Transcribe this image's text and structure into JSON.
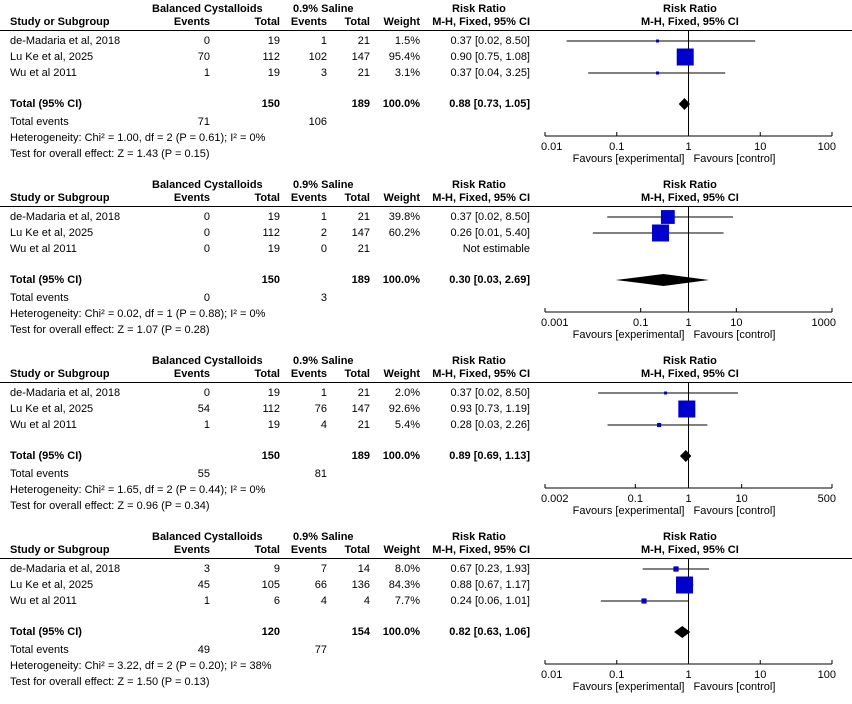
{
  "column_headers": {
    "group1": "Balanced Cystalloids",
    "group2": "0.9% Saline",
    "risk_ratio": "Risk Ratio",
    "study": "Study or Subgroup",
    "events": "Events",
    "total": "Total",
    "weight": "Weight",
    "method": "M-H, Fixed, 95% CI"
  },
  "labels": {
    "total_row": "Total (95% CI)",
    "total_events": "Total events",
    "favours_left": "Favours [experimental]",
    "favours_right": "Favours [control]"
  },
  "colors": {
    "study_marker": "#0000CC",
    "summary_diamond": "#000000"
  },
  "chart_data": [
    {
      "type": "forest",
      "scale": "log",
      "ticks": [
        "0.01",
        "0.1",
        "1",
        "10",
        "100"
      ],
      "xlim": [
        0.01,
        100
      ],
      "studies": [
        {
          "name": "de-Madaria et al, 2018",
          "e1": "0",
          "n1": "19",
          "e2": "1",
          "n2": "21",
          "weight": "1.5%",
          "ci": "0.37 [0.02, 8.50]",
          "rr": 0.37,
          "lo": 0.02,
          "hi": 8.5,
          "w": 1.5
        },
        {
          "name": "Lu Ke et al, 2025",
          "e1": "70",
          "n1": "112",
          "e2": "102",
          "n2": "147",
          "weight": "95.4%",
          "ci": "0.90 [0.75, 1.08]",
          "rr": 0.9,
          "lo": 0.75,
          "hi": 1.08,
          "w": 95.4
        },
        {
          "name": "Wu et al 2011",
          "e1": "1",
          "n1": "19",
          "e2": "3",
          "n2": "21",
          "weight": "3.1%",
          "ci": "0.37 [0.04, 3.25]",
          "rr": 0.37,
          "lo": 0.04,
          "hi": 3.25,
          "w": 3.1
        }
      ],
      "total": {
        "n1": "150",
        "n2": "189",
        "weight": "100.0%",
        "ci": "0.88 [0.73, 1.05]",
        "rr": 0.88,
        "lo": 0.73,
        "hi": 1.05
      },
      "total_events": {
        "e1": "71",
        "e2": "106"
      },
      "heterogeneity": "Heterogeneity: Chi² = 1.00, df = 2 (P = 0.61); I² = 0%",
      "overall_effect": "Test for overall effect: Z = 1.43 (P = 0.15)"
    },
    {
      "type": "forest",
      "scale": "log",
      "ticks": [
        "0.001",
        "0.1",
        "1",
        "10",
        "1000"
      ],
      "xlim": [
        0.001,
        1000
      ],
      "studies": [
        {
          "name": "de-Madaria et al, 2018",
          "e1": "0",
          "n1": "19",
          "e2": "1",
          "n2": "21",
          "weight": "39.8%",
          "ci": "0.37 [0.02, 8.50]",
          "rr": 0.37,
          "lo": 0.02,
          "hi": 8.5,
          "w": 39.8
        },
        {
          "name": "Lu Ke et al, 2025",
          "e1": "0",
          "n1": "112",
          "e2": "2",
          "n2": "147",
          "weight": "60.2%",
          "ci": "0.26 [0.01, 5.40]",
          "rr": 0.26,
          "lo": 0.01,
          "hi": 5.4,
          "w": 60.2
        },
        {
          "name": "Wu et al 2011",
          "e1": "0",
          "n1": "19",
          "e2": "0",
          "n2": "21",
          "weight": "",
          "ci": "Not estimable",
          "rr": null,
          "lo": null,
          "hi": null,
          "w": 0
        }
      ],
      "total": {
        "n1": "150",
        "n2": "189",
        "weight": "100.0%",
        "ci": "0.30 [0.03, 2.69]",
        "rr": 0.3,
        "lo": 0.03,
        "hi": 2.69
      },
      "total_events": {
        "e1": "0",
        "e2": "3"
      },
      "heterogeneity": "Heterogeneity: Chi² = 0.02, df = 1 (P = 0.88); I² = 0%",
      "overall_effect": "Test for overall effect: Z = 1.07 (P = 0.28)"
    },
    {
      "type": "forest",
      "scale": "log",
      "ticks": [
        "0.002",
        "0.1",
        "1",
        "10",
        "500"
      ],
      "xlim": [
        0.002,
        500
      ],
      "studies": [
        {
          "name": "de-Madaria et al, 2018",
          "e1": "0",
          "n1": "19",
          "e2": "1",
          "n2": "21",
          "weight": "2.0%",
          "ci": "0.37 [0.02, 8.50]",
          "rr": 0.37,
          "lo": 0.02,
          "hi": 8.5,
          "w": 2.0
        },
        {
          "name": "Lu Ke et al, 2025",
          "e1": "54",
          "n1": "112",
          "e2": "76",
          "n2": "147",
          "weight": "92.6%",
          "ci": "0.93 [0.73, 1.19]",
          "rr": 0.93,
          "lo": 0.73,
          "hi": 1.19,
          "w": 92.6
        },
        {
          "name": "Wu et al 2011",
          "e1": "1",
          "n1": "19",
          "e2": "4",
          "n2": "21",
          "weight": "5.4%",
          "ci": "0.28 [0.03, 2.26]",
          "rr": 0.28,
          "lo": 0.03,
          "hi": 2.26,
          "w": 5.4
        }
      ],
      "total": {
        "n1": "150",
        "n2": "189",
        "weight": "100.0%",
        "ci": "0.89 [0.69, 1.13]",
        "rr": 0.89,
        "lo": 0.69,
        "hi": 1.13
      },
      "total_events": {
        "e1": "55",
        "e2": "81"
      },
      "heterogeneity": "Heterogeneity: Chi² = 1.65, df = 2 (P = 0.44); I² = 0%",
      "overall_effect": "Test for overall effect: Z = 0.96 (P = 0.34)"
    },
    {
      "type": "forest",
      "scale": "log",
      "ticks": [
        "0.01",
        "0.1",
        "1",
        "10",
        "100"
      ],
      "xlim": [
        0.01,
        100
      ],
      "studies": [
        {
          "name": "de-Madaria et al, 2018",
          "e1": "3",
          "n1": "9",
          "e2": "7",
          "n2": "14",
          "weight": "8.0%",
          "ci": "0.67 [0.23, 1.93]",
          "rr": 0.67,
          "lo": 0.23,
          "hi": 1.93,
          "w": 8.0
        },
        {
          "name": "Lu Ke et al, 2025",
          "e1": "45",
          "n1": "105",
          "e2": "66",
          "n2": "136",
          "weight": "84.3%",
          "ci": "0.88 [0.67, 1.17]",
          "rr": 0.88,
          "lo": 0.67,
          "hi": 1.17,
          "w": 84.3
        },
        {
          "name": "Wu et al 2011",
          "e1": "1",
          "n1": "6",
          "e2": "4",
          "n2": "4",
          "weight": "7.7%",
          "ci": "0.24 [0.06, 1.01]",
          "rr": 0.24,
          "lo": 0.06,
          "hi": 1.01,
          "w": 7.7
        }
      ],
      "total": {
        "n1": "120",
        "n2": "154",
        "weight": "100.0%",
        "ci": "0.82 [0.63, 1.06]",
        "rr": 0.82,
        "lo": 0.63,
        "hi": 1.06
      },
      "total_events": {
        "e1": "49",
        "e2": "77"
      },
      "heterogeneity": "Heterogeneity: Chi² = 3.22, df = 2 (P = 0.20); I² = 38%",
      "overall_effect": "Test for overall effect: Z = 1.50 (P = 0.13)"
    }
  ]
}
